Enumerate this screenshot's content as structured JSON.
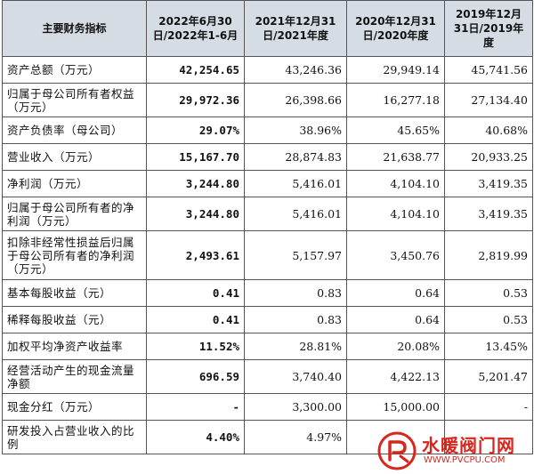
{
  "header": {
    "col0": "主要财务指标",
    "col1": "2022年6月30日/2022年1-6月",
    "col2": "2021年12月31日/2021年度",
    "col3": "2020年12月31日/2020年度",
    "col4": "2019年12月31日/2019年度"
  },
  "rows": [
    {
      "label": "资产总额（万元）",
      "v2022": "42,254.65",
      "v2021": "43,246.36",
      "v2020": "29,949.14",
      "v2019": "45,741.56"
    },
    {
      "label": "归属于母公司所有者权益（万元）",
      "v2022": "29,972.36",
      "v2021": "26,398.66",
      "v2020": "16,277.18",
      "v2019": "27,134.40"
    },
    {
      "label": "资产负债率（母公司）",
      "v2022": "29.07%",
      "v2021": "38.96%",
      "v2020": "45.65%",
      "v2019": "40.68%"
    },
    {
      "label": "营业收入（万元）",
      "v2022": "15,167.70",
      "v2021": "28,874.83",
      "v2020": "21,638.77",
      "v2019": "20,933.25"
    },
    {
      "label": "净利润（万元）",
      "v2022": "3,244.80",
      "v2021": "5,416.01",
      "v2020": "4,104.10",
      "v2019": "3,419.35"
    },
    {
      "label": "归属于母公司所有者的净利润（万元）",
      "v2022": "3,244.80",
      "v2021": "5,416.01",
      "v2020": "4,104.10",
      "v2019": "3,419.35"
    },
    {
      "label": "扣除非经常性损益后归属于母公司所有者的净利润（万元）",
      "v2022": "2,493.61",
      "v2021": "5,157.97",
      "v2020": "3,450.76",
      "v2019": "2,819.99"
    },
    {
      "label": "基本每股收益（元）",
      "v2022": "0.41",
      "v2021": "0.83",
      "v2020": "0.64",
      "v2019": "0.53"
    },
    {
      "label": "稀释每股收益（元）",
      "v2022": "0.41",
      "v2021": "0.83",
      "v2020": "0.64",
      "v2019": "0.53"
    },
    {
      "label": "加权平均净资产收益率",
      "v2022": "11.52%",
      "v2021": "28.81%",
      "v2020": "20.08%",
      "v2019": "13.45%"
    },
    {
      "label": "经营活动产生的现金流量净额",
      "v2022": "696.59",
      "v2021": "3,740.40",
      "v2020": "4,422.13",
      "v2019": "5,201.47"
    },
    {
      "label": "现金分红（万元）",
      "v2022": "-",
      "v2021": "3,300.00",
      "v2020": "15,000.00",
      "v2019": "-"
    },
    {
      "label": "研发投入占营业收入的比例",
      "v2022": "4.40%",
      "v2021": "4.97%",
      "v2020": "",
      "v2019": ""
    }
  ],
  "watermark": {
    "text": "水暖阀门网",
    "url": "WWW.PVCPU.COM",
    "color": "#d9261c"
  }
}
